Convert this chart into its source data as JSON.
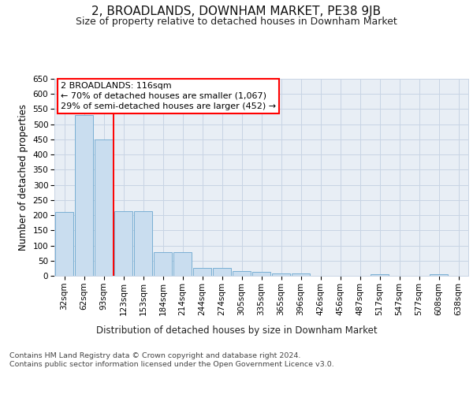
{
  "title": "2, BROADLANDS, DOWNHAM MARKET, PE38 9JB",
  "subtitle": "Size of property relative to detached houses in Downham Market",
  "xlabel": "Distribution of detached houses by size in Downham Market",
  "ylabel": "Number of detached properties",
  "categories": [
    "32sqm",
    "62sqm",
    "93sqm",
    "123sqm",
    "153sqm",
    "184sqm",
    "214sqm",
    "244sqm",
    "274sqm",
    "305sqm",
    "335sqm",
    "365sqm",
    "396sqm",
    "426sqm",
    "456sqm",
    "487sqm",
    "517sqm",
    "547sqm",
    "577sqm",
    "608sqm",
    "638sqm"
  ],
  "values": [
    210,
    530,
    450,
    212,
    212,
    78,
    78,
    27,
    27,
    15,
    12,
    9,
    9,
    0,
    0,
    0,
    5,
    0,
    0,
    5,
    0
  ],
  "bar_color": "#c9ddef",
  "bar_edge_color": "#7aafd4",
  "bar_linewidth": 0.7,
  "annotation_text": "2 BROADLANDS: 116sqm\n← 70% of detached houses are smaller (1,067)\n29% of semi-detached houses are larger (452) →",
  "ylim": [
    0,
    650
  ],
  "yticks": [
    0,
    50,
    100,
    150,
    200,
    250,
    300,
    350,
    400,
    450,
    500,
    550,
    600,
    650
  ],
  "background_color": "#ffffff",
  "plot_bg_color": "#e8eef5",
  "grid_color": "#c8d4e4",
  "footnote": "Contains HM Land Registry data © Crown copyright and database right 2024.\nContains public sector information licensed under the Open Government Licence v3.0.",
  "title_fontsize": 11,
  "subtitle_fontsize": 9,
  "axis_label_fontsize": 8.5,
  "tick_fontsize": 7.5,
  "annotation_fontsize": 8,
  "ylabel_fontsize": 8.5
}
